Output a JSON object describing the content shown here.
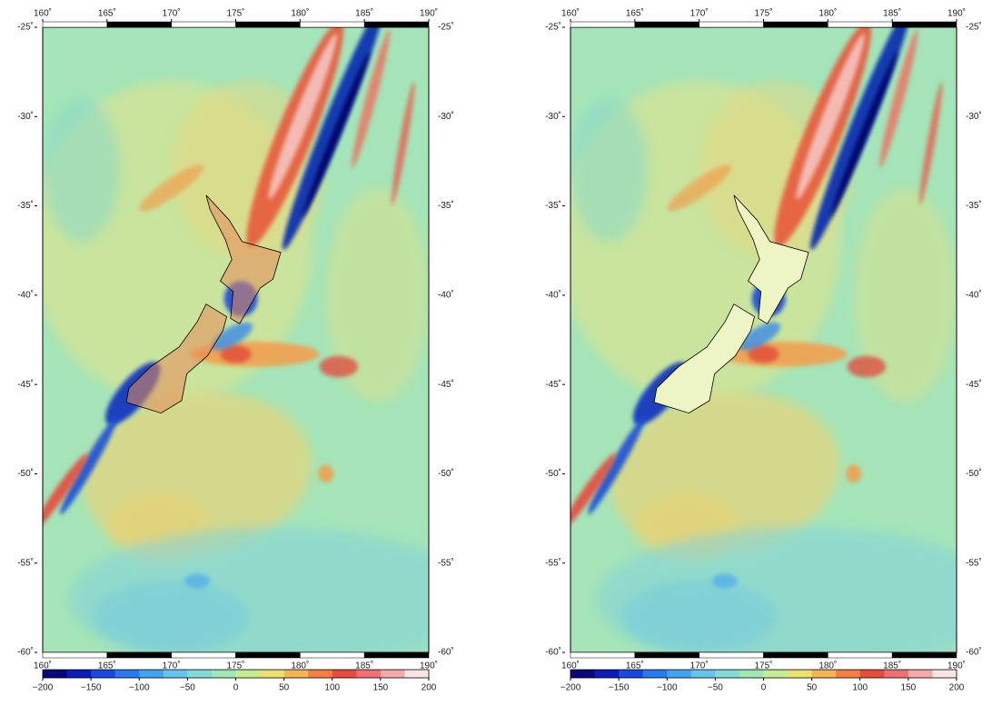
{
  "maps": [
    {
      "land_masked": false,
      "xlim": [
        160,
        190
      ],
      "ylim": [
        -60,
        -25
      ],
      "xticks": [
        {
          "value": 160,
          "label": "160˚"
        },
        {
          "value": 165,
          "label": "165˚"
        },
        {
          "value": 170,
          "label": "170˚"
        },
        {
          "value": 175,
          "label": "175˚"
        },
        {
          "value": 180,
          "label": "180˚"
        },
        {
          "value": 185,
          "label": "185˚"
        },
        {
          "value": 190,
          "label": "190˚"
        }
      ],
      "yticks": [
        {
          "value": -25,
          "label": "-25˚"
        },
        {
          "value": -30,
          "label": "-30˚"
        },
        {
          "value": -35,
          "label": "-35˚"
        },
        {
          "value": -40,
          "label": "-40˚"
        },
        {
          "value": -45,
          "label": "-45˚"
        },
        {
          "value": -50,
          "label": "-50˚"
        },
        {
          "value": -55,
          "label": "-55˚"
        },
        {
          "value": -60,
          "label": "-60˚"
        }
      ],
      "colorbar": {
        "lim": [
          -200,
          200
        ],
        "ticks": [
          {
            "value": -200,
            "label": "−200"
          },
          {
            "value": -150,
            "label": "−150"
          },
          {
            "value": -100,
            "label": "−100"
          },
          {
            "value": -50,
            "label": "−50"
          },
          0,
          50,
          100,
          150,
          200
        ],
        "colors": [
          "#08087a",
          "#0c1cb8",
          "#1848e0",
          "#2a78f0",
          "#40a4f4",
          "#64c4ee",
          "#84dad6",
          "#9ee6b4",
          "#c6ec92",
          "#eee070",
          "#f6b450",
          "#f28040",
          "#e64c3c",
          "#ee7070",
          "#f6a8a8",
          "#fde4e4"
        ]
      }
    },
    {
      "land_masked": true,
      "xlim": [
        160,
        190
      ],
      "ylim": [
        -60,
        -25
      ],
      "xticks": [
        {
          "value": 160,
          "label": "160˚"
        },
        {
          "value": 165,
          "label": "165˚"
        },
        {
          "value": 170,
          "label": "170˚"
        },
        {
          "value": 175,
          "label": "175˚"
        },
        {
          "value": 180,
          "label": "180˚"
        },
        {
          "value": 185,
          "label": "185˚"
        },
        {
          "value": 190,
          "label": "190˚"
        }
      ],
      "yticks": [
        {
          "value": -25,
          "label": "-25˚"
        },
        {
          "value": -30,
          "label": "-30˚"
        },
        {
          "value": -35,
          "label": "-35˚"
        },
        {
          "value": -40,
          "label": "-40˚"
        },
        {
          "value": -45,
          "label": "-45˚"
        },
        {
          "value": -50,
          "label": "-50˚"
        },
        {
          "value": -55,
          "label": "-55˚"
        },
        {
          "value": -60,
          "label": "-60˚"
        }
      ],
      "colorbar": {
        "lim": [
          -200,
          200
        ],
        "ticks": [
          {
            "value": -200,
            "label": "−200"
          },
          {
            "value": -150,
            "label": "−150"
          },
          {
            "value": -100,
            "label": "−100"
          },
          {
            "value": -50,
            "label": "−50"
          },
          0,
          50,
          100,
          150,
          200
        ],
        "colors": [
          "#08087a",
          "#0c1cb8",
          "#1848e0",
          "#2a78f0",
          "#40a4f4",
          "#64c4ee",
          "#84dad6",
          "#9ee6b4",
          "#c6ec92",
          "#eee070",
          "#f6b450",
          "#f28040",
          "#e64c3c",
          "#ee7070",
          "#f6a8a8",
          "#fde4e4"
        ]
      }
    }
  ]
}
